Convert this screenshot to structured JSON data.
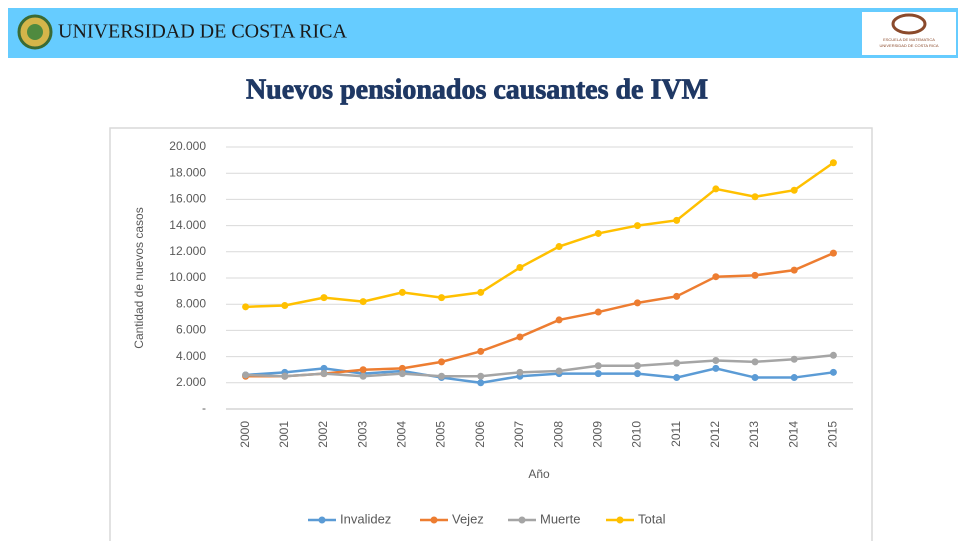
{
  "header": {
    "university": "UNIVERSIDAD DE COSTA RICA",
    "school_logo_lines": [
      "ESCUELA DE MATEMATICA",
      "UNIVERSIDAD DE COSTA RICA"
    ]
  },
  "chart_data": {
    "type": "line",
    "title": "Nuevos pensionados causantes de IVM",
    "x_label": "Año",
    "y_label": "Cantidad de nuevos casos",
    "categories": [
      "2000",
      "2001",
      "2002",
      "2003",
      "2004",
      "2005",
      "2006",
      "2007",
      "2008",
      "2009",
      "2010",
      "2011",
      "2012",
      "2013",
      "2014",
      "2015"
    ],
    "series": [
      {
        "name": "Invalidez",
        "color": "#5b9bd5",
        "values": [
          2600,
          2800,
          3100,
          2700,
          2900,
          2400,
          2000,
          2500,
          2700,
          2700,
          2700,
          2400,
          3100,
          2400,
          2400,
          2800
        ]
      },
      {
        "name": "Vejez",
        "color": "#ed7d31",
        "values": [
          2500,
          2500,
          2700,
          3000,
          3100,
          3600,
          4400,
          5500,
          6800,
          7400,
          8100,
          8600,
          10100,
          10200,
          10600,
          11900
        ]
      },
      {
        "name": "Muerte",
        "color": "#a5a5a5",
        "values": [
          2600,
          2500,
          2700,
          2500,
          2700,
          2500,
          2500,
          2800,
          2900,
          3300,
          3300,
          3500,
          3700,
          3600,
          3800,
          4100
        ]
      },
      {
        "name": "Total",
        "color": "#ffc000",
        "values": [
          7800,
          7900,
          8500,
          8200,
          8900,
          8500,
          8900,
          10800,
          12400,
          13400,
          14000,
          14400,
          16800,
          16200,
          16700,
          18800
        ]
      }
    ],
    "ylim": [
      0,
      20000
    ],
    "yticks": [
      {
        "value": 0,
        "label": "-"
      },
      {
        "value": 2000,
        "label": "2.000"
      },
      {
        "value": 4000,
        "label": "4.000"
      },
      {
        "value": 6000,
        "label": "6.000"
      },
      {
        "value": 8000,
        "label": "8.000"
      },
      {
        "value": 10000,
        "label": "10.000"
      },
      {
        "value": 12000,
        "label": "12.000"
      },
      {
        "value": 14000,
        "label": "14.000"
      },
      {
        "value": 16000,
        "label": "16.000"
      },
      {
        "value": 18000,
        "label": "18.000"
      },
      {
        "value": 20000,
        "label": "20.000"
      }
    ],
    "grid": true,
    "legend": "bottom"
  }
}
